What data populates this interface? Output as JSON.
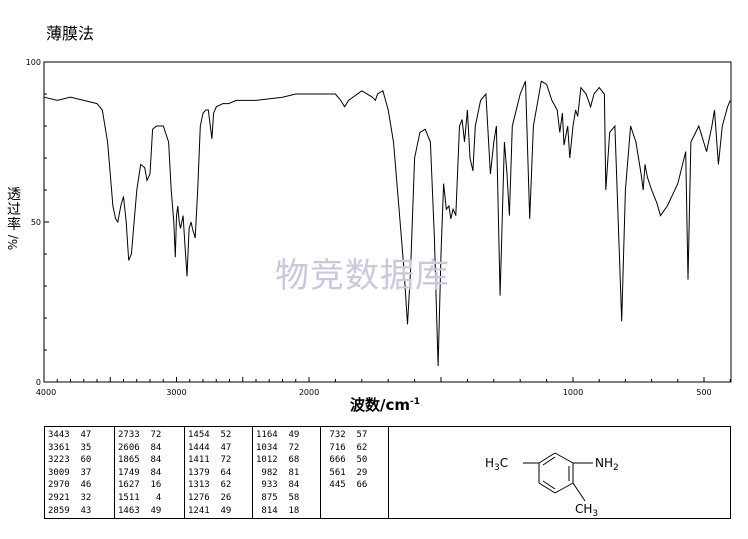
{
  "title": "薄膜法",
  "watermark": "物竞数据库",
  "chart_data": {
    "type": "line",
    "xlabel": "波数/cm",
    "xlabel_sup": "-1",
    "ylabel": "透过率",
    "ylabel_unit": "%/",
    "xlim": [
      4000,
      400
    ],
    "ylim": [
      0,
      100
    ],
    "x_ticks": [
      "4000",
      "3000",
      "2000",
      "1000",
      "500"
    ],
    "y_ticks": [
      "100",
      "50",
      "0"
    ],
    "grid": false,
    "series": [
      {
        "points": [
          [
            4000,
            89
          ],
          [
            3900,
            88
          ],
          [
            3800,
            89
          ],
          [
            3700,
            88
          ],
          [
            3600,
            87
          ],
          [
            3560,
            85
          ],
          [
            3520,
            75
          ],
          [
            3480,
            55
          ],
          [
            3460,
            51
          ],
          [
            3443,
            50
          ],
          [
            3420,
            55
          ],
          [
            3400,
            58
          ],
          [
            3380,
            50
          ],
          [
            3361,
            38
          ],
          [
            3340,
            40
          ],
          [
            3300,
            60
          ],
          [
            3270,
            68
          ],
          [
            3240,
            67
          ],
          [
            3223,
            63
          ],
          [
            3200,
            65
          ],
          [
            3180,
            79
          ],
          [
            3150,
            80
          ],
          [
            3100,
            80
          ],
          [
            3060,
            75
          ],
          [
            3040,
            60
          ],
          [
            3020,
            50
          ],
          [
            3009,
            39
          ],
          [
            3000,
            52
          ],
          [
            2990,
            55
          ],
          [
            2980,
            50
          ],
          [
            2970,
            48
          ],
          [
            2950,
            52
          ],
          [
            2940,
            45
          ],
          [
            2921,
            33
          ],
          [
            2905,
            48
          ],
          [
            2890,
            50
          ],
          [
            2880,
            48
          ],
          [
            2859,
            45
          ],
          [
            2840,
            60
          ],
          [
            2820,
            80
          ],
          [
            2800,
            84
          ],
          [
            2780,
            85
          ],
          [
            2760,
            85
          ],
          [
            2745,
            80
          ],
          [
            2733,
            76
          ],
          [
            2720,
            84
          ],
          [
            2700,
            86
          ],
          [
            2650,
            87
          ],
          [
            2606,
            87
          ],
          [
            2550,
            88
          ],
          [
            2400,
            88
          ],
          [
            2200,
            89
          ],
          [
            2100,
            90
          ],
          [
            2000,
            90
          ],
          [
            1900,
            90
          ],
          [
            1880,
            88
          ],
          [
            1865,
            86
          ],
          [
            1850,
            88
          ],
          [
            1800,
            91
          ],
          [
            1760,
            89
          ],
          [
            1749,
            88
          ],
          [
            1740,
            90
          ],
          [
            1720,
            91
          ],
          [
            1700,
            85
          ],
          [
            1680,
            75
          ],
          [
            1660,
            55
          ],
          [
            1640,
            35
          ],
          [
            1627,
            18
          ],
          [
            1615,
            35
          ],
          [
            1600,
            70
          ],
          [
            1580,
            78
          ],
          [
            1560,
            79
          ],
          [
            1540,
            75
          ],
          [
            1525,
            45
          ],
          [
            1511,
            5
          ],
          [
            1500,
            40
          ],
          [
            1490,
            62
          ],
          [
            1480,
            54
          ],
          [
            1470,
            55
          ],
          [
            1463,
            51
          ],
          [
            1454,
            54
          ],
          [
            1444,
            52
          ],
          [
            1430,
            80
          ],
          [
            1420,
            82
          ],
          [
            1411,
            75
          ],
          [
            1400,
            85
          ],
          [
            1390,
            70
          ],
          [
            1379,
            66
          ],
          [
            1370,
            80
          ],
          [
            1350,
            88
          ],
          [
            1330,
            90
          ],
          [
            1313,
            65
          ],
          [
            1300,
            75
          ],
          [
            1290,
            80
          ],
          [
            1276,
            27
          ],
          [
            1260,
            75
          ],
          [
            1250,
            65
          ],
          [
            1241,
            52
          ],
          [
            1230,
            80
          ],
          [
            1200,
            90
          ],
          [
            1180,
            94
          ],
          [
            1164,
            51
          ],
          [
            1150,
            80
          ],
          [
            1120,
            94
          ],
          [
            1100,
            93
          ],
          [
            1080,
            88
          ],
          [
            1060,
            85
          ],
          [
            1050,
            78
          ],
          [
            1040,
            84
          ],
          [
            1034,
            74
          ],
          [
            1020,
            80
          ],
          [
            1012,
            70
          ],
          [
            1000,
            80
          ],
          [
            990,
            85
          ],
          [
            982,
            83
          ],
          [
            970,
            92
          ],
          [
            950,
            90
          ],
          [
            933,
            86
          ],
          [
            920,
            90
          ],
          [
            900,
            92
          ],
          [
            880,
            90
          ],
          [
            875,
            60
          ],
          [
            860,
            78
          ],
          [
            840,
            80
          ],
          [
            814,
            19
          ],
          [
            800,
            60
          ],
          [
            780,
            80
          ],
          [
            760,
            75
          ],
          [
            740,
            65
          ],
          [
            732,
            60
          ],
          [
            725,
            68
          ],
          [
            716,
            64
          ],
          [
            700,
            60
          ],
          [
            680,
            56
          ],
          [
            666,
            52
          ],
          [
            640,
            55
          ],
          [
            600,
            62
          ],
          [
            570,
            72
          ],
          [
            561,
            32
          ],
          [
            550,
            75
          ],
          [
            520,
            80
          ],
          [
            490,
            72
          ],
          [
            470,
            80
          ],
          [
            460,
            85
          ],
          [
            445,
            68
          ],
          [
            430,
            80
          ],
          [
            410,
            86
          ],
          [
            400,
            88
          ]
        ]
      }
    ],
    "peak_table": {
      "columns": [
        [
          [
            "3443",
            "47"
          ],
          [
            "3361",
            "35"
          ],
          [
            "3223",
            "60"
          ],
          [
            "3009",
            "37"
          ],
          [
            "2970",
            "46"
          ],
          [
            "2921",
            "32"
          ],
          [
            "2859",
            "43"
          ]
        ],
        [
          [
            "2733",
            "72"
          ],
          [
            "2606",
            "84"
          ],
          [
            "1865",
            "84"
          ],
          [
            "1749",
            "84"
          ],
          [
            "1627",
            "16"
          ],
          [
            "1511",
            "4"
          ],
          [
            "1463",
            "49"
          ]
        ],
        [
          [
            "1454",
            "52"
          ],
          [
            "1444",
            "47"
          ],
          [
            "1411",
            "72"
          ],
          [
            "1379",
            "64"
          ],
          [
            "1313",
            "62"
          ],
          [
            "1276",
            "26"
          ],
          [
            "1241",
            "49"
          ]
        ],
        [
          [
            "1164",
            "49"
          ],
          [
            "1034",
            "72"
          ],
          [
            "1012",
            "68"
          ],
          [
            "982",
            "81"
          ],
          [
            "933",
            "84"
          ],
          [
            "875",
            "58"
          ],
          [
            "814",
            "18"
          ]
        ],
        [
          [
            "732",
            "57"
          ],
          [
            "716",
            "62"
          ],
          [
            "666",
            "50"
          ],
          [
            "561",
            "29"
          ],
          [
            "445",
            "66"
          ]
        ]
      ]
    },
    "structure_labels": {
      "ch3_left": "H3C",
      "nh2": "NH2",
      "ch3_bottom": "CH3"
    }
  }
}
